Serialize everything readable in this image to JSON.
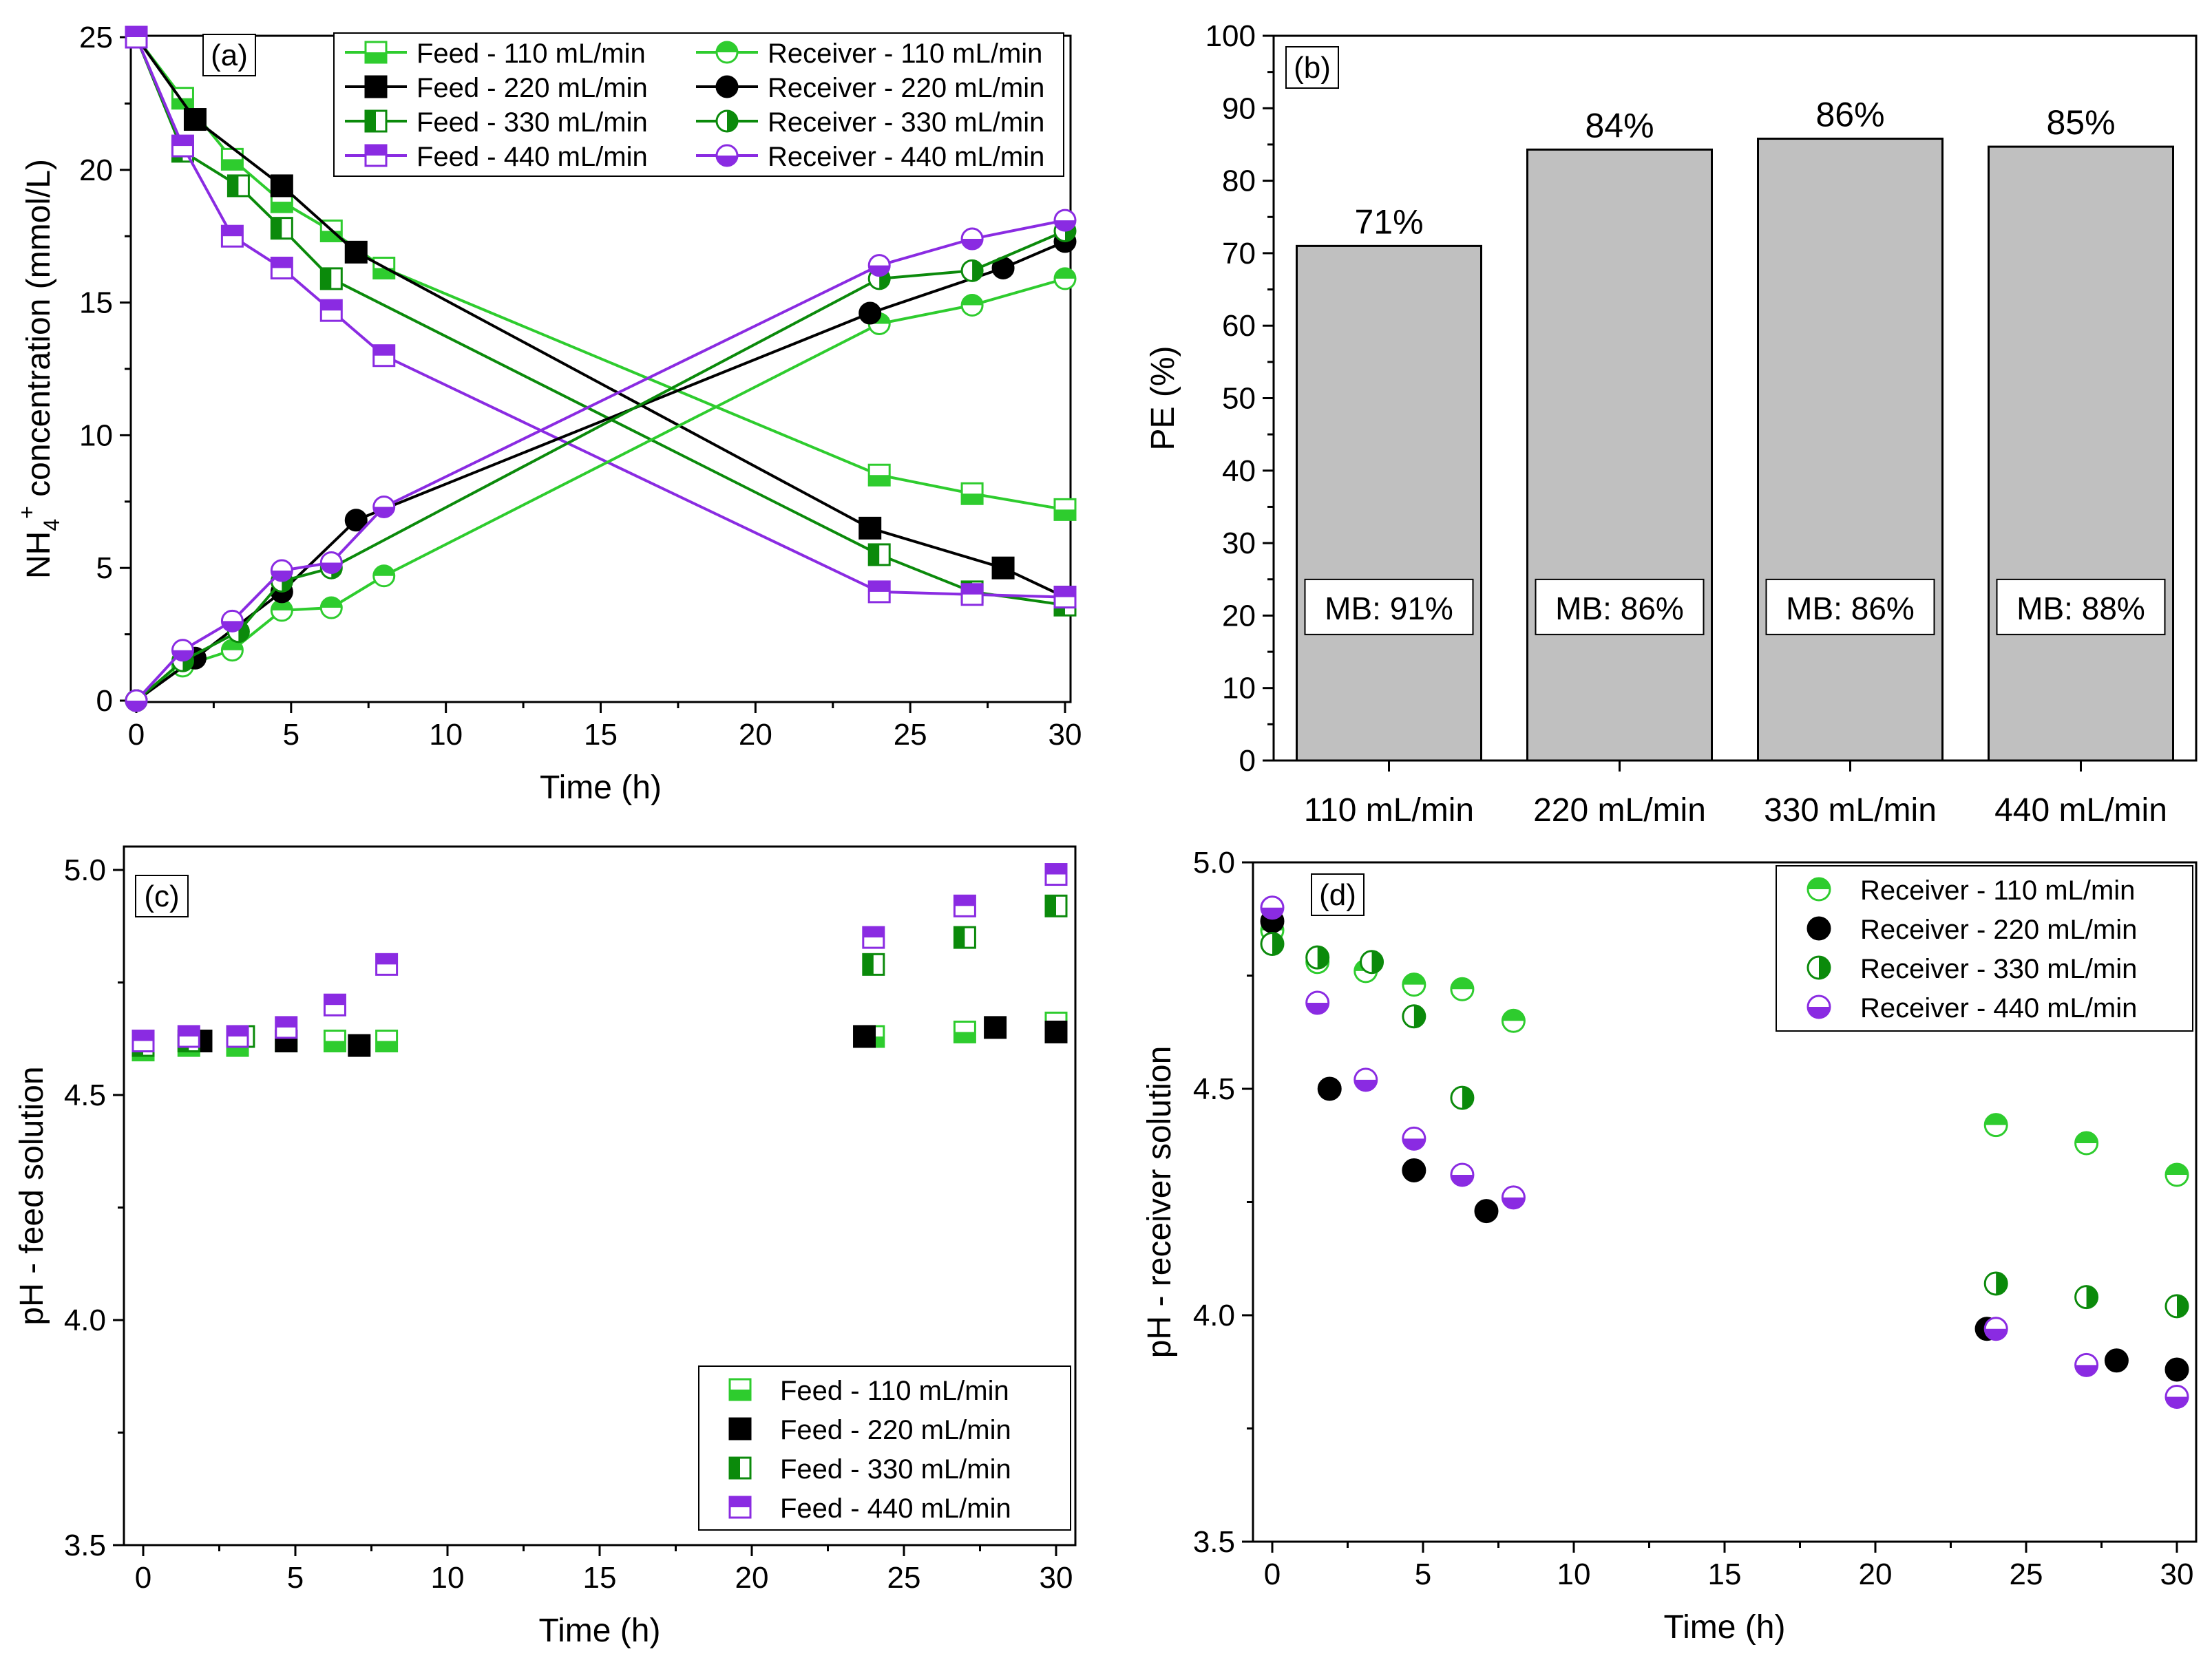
{
  "colors": {
    "g110": "#2ecc2e",
    "k220": "#000000",
    "d330": "#0b8a0b",
    "p440": "#8a2be2",
    "bar": "#c0c0c0"
  },
  "chart_data": [
    {
      "panel": "(a)",
      "type": "line",
      "xlabel": "Time (h)",
      "ylabel_parts": [
        "NH",
        "4",
        "+",
        " concentration (mmol/L)"
      ],
      "xlim": [
        0,
        30
      ],
      "ylim": [
        0,
        25
      ],
      "xticks": [
        0,
        5,
        10,
        15,
        20,
        25,
        30
      ],
      "yticks": [
        0,
        5,
        10,
        15,
        20,
        25
      ],
      "legend": "top-right",
      "series": [
        {
          "name": "Feed - 110 mL/min",
          "color": "g110",
          "marker": "square-bottom",
          "x": [
            0,
            1.5,
            3.1,
            4.7,
            6.3,
            8,
            24,
            27,
            30
          ],
          "y": [
            25,
            22.7,
            20.4,
            18.8,
            17.7,
            16.3,
            8.5,
            7.8,
            7.2
          ]
        },
        {
          "name": "Feed - 220 mL/min",
          "color": "k220",
          "marker": "square-full",
          "x": [
            0,
            1.9,
            4.7,
            7.1,
            23.7,
            28,
            30
          ],
          "y": [
            25,
            21.9,
            19.4,
            16.9,
            6.5,
            5.0,
            3.9
          ]
        },
        {
          "name": "Feed - 330 mL/min",
          "color": "d330",
          "marker": "square-left",
          "x": [
            0,
            1.5,
            3.3,
            4.7,
            6.3,
            24,
            27,
            30
          ],
          "y": [
            25,
            20.7,
            19.4,
            17.8,
            15.9,
            5.5,
            4.1,
            3.6
          ]
        },
        {
          "name": "Feed - 440 mL/min",
          "color": "p440",
          "marker": "square-top",
          "x": [
            0,
            1.5,
            3.1,
            4.7,
            6.3,
            8,
            24,
            27,
            30
          ],
          "y": [
            25,
            20.9,
            17.5,
            16.3,
            14.7,
            13.0,
            4.1,
            4.0,
            3.9
          ]
        },
        {
          "name": "Receiver - 110 mL/min",
          "color": "g110",
          "marker": "circle-top",
          "x": [
            0,
            1.5,
            3.1,
            4.7,
            6.3,
            8,
            24,
            27,
            30
          ],
          "y": [
            0,
            1.3,
            1.9,
            3.4,
            3.5,
            4.7,
            14.2,
            14.9,
            15.9
          ]
        },
        {
          "name": "Receiver - 220 mL/min",
          "color": "k220",
          "marker": "circle-full",
          "x": [
            0,
            1.9,
            4.7,
            7.1,
            23.7,
            28,
            30
          ],
          "y": [
            0,
            1.6,
            4.1,
            6.8,
            14.6,
            16.3,
            17.3
          ]
        },
        {
          "name": "Receiver - 330 mL/min",
          "color": "d330",
          "marker": "circle-right",
          "x": [
            0,
            1.5,
            3.3,
            4.7,
            6.3,
            24,
            27,
            30
          ],
          "y": [
            0,
            1.5,
            2.6,
            4.5,
            5.0,
            15.9,
            16.2,
            17.7
          ]
        },
        {
          "name": "Receiver - 440 mL/min",
          "color": "p440",
          "marker": "circle-bottom",
          "x": [
            0,
            1.5,
            3.1,
            4.7,
            6.3,
            8,
            24,
            27,
            30
          ],
          "y": [
            0,
            1.9,
            3.0,
            4.9,
            5.2,
            7.3,
            16.4,
            17.4,
            18.1
          ]
        }
      ]
    },
    {
      "panel": "(b)",
      "type": "bar",
      "ylabel": "PE (%)",
      "ylim": [
        0,
        100
      ],
      "yticks": [
        0,
        10,
        20,
        30,
        40,
        50,
        60,
        70,
        80,
        90,
        100
      ],
      "categories": [
        "110 mL/min",
        "220 mL/min",
        "330 mL/min",
        "440 mL/min"
      ],
      "values": [
        71,
        84.3,
        85.8,
        84.7
      ],
      "value_labels": [
        "71%",
        "84%",
        "86%",
        "85%"
      ],
      "annotations": [
        "MB: 91%",
        "MB: 86%",
        "MB: 86%",
        "MB: 88%"
      ]
    },
    {
      "panel": "(c)",
      "type": "scatter",
      "xlabel": "Time (h)",
      "ylabel": "pH - feed solution",
      "xlim": [
        0,
        30
      ],
      "ylim": [
        3.5,
        5.0
      ],
      "xticks": [
        0,
        5,
        10,
        15,
        20,
        25,
        30
      ],
      "yticks": [
        3.5,
        4.0,
        4.5,
        5.0
      ],
      "yticklabels": [
        "3.5",
        "4.0",
        "4.5",
        "5.0"
      ],
      "legend": "bottom-right",
      "series": [
        {
          "name": "Feed - 110 mL/min",
          "color": "g110",
          "marker": "square-bottom",
          "x": [
            0,
            1.5,
            3.1,
            4.7,
            6.3,
            8,
            24,
            27,
            30
          ],
          "y": [
            4.6,
            4.61,
            4.61,
            4.62,
            4.62,
            4.62,
            4.63,
            4.64,
            4.66
          ]
        },
        {
          "name": "Feed - 220 mL/min",
          "color": "k220",
          "marker": "square-full",
          "x": [
            1.9,
            4.7,
            7.1,
            23.7,
            28,
            30
          ],
          "y": [
            4.62,
            4.62,
            4.61,
            4.63,
            4.65,
            4.64
          ]
        },
        {
          "name": "Feed - 330 mL/min",
          "color": "d330",
          "marker": "square-left",
          "x": [
            0,
            1.5,
            3.3,
            24,
            27,
            30
          ],
          "y": [
            4.61,
            4.62,
            4.63,
            4.79,
            4.85,
            4.92
          ]
        },
        {
          "name": "Feed - 440 mL/min",
          "color": "p440",
          "marker": "square-top",
          "x": [
            0,
            1.5,
            3.1,
            4.7,
            6.3,
            8,
            24,
            27,
            30
          ],
          "y": [
            4.62,
            4.63,
            4.63,
            4.65,
            4.7,
            4.79,
            4.85,
            4.92,
            4.99
          ]
        }
      ]
    },
    {
      "panel": "(d)",
      "type": "scatter",
      "xlabel": "Time (h)",
      "ylabel": "pH - receiver solution",
      "xlim": [
        0,
        30
      ],
      "ylim": [
        3.5,
        5.0
      ],
      "xticks": [
        0,
        5,
        10,
        15,
        20,
        25,
        30
      ],
      "yticks": [
        3.5,
        4.0,
        4.5,
        5.0
      ],
      "yticklabels": [
        "3.5",
        "4.0",
        "4.5",
        "5.0"
      ],
      "legend": "top-right",
      "series": [
        {
          "name": "Receiver - 110 mL/min",
          "color": "g110",
          "marker": "circle-top",
          "x": [
            0,
            1.5,
            3.1,
            4.7,
            6.3,
            8,
            24,
            27,
            30
          ],
          "y": [
            4.85,
            4.78,
            4.76,
            4.73,
            4.72,
            4.65,
            4.42,
            4.38,
            4.31
          ]
        },
        {
          "name": "Receiver - 220 mL/min",
          "color": "k220",
          "marker": "circle-full",
          "x": [
            0,
            1.9,
            4.7,
            7.1,
            23.7,
            28,
            30
          ],
          "y": [
            4.87,
            4.5,
            4.32,
            4.23,
            3.97,
            3.9,
            3.88
          ]
        },
        {
          "name": "Receiver - 330 mL/min",
          "color": "d330",
          "marker": "circle-right",
          "x": [
            0,
            1.5,
            3.3,
            4.7,
            6.3,
            24,
            27,
            30
          ],
          "y": [
            4.82,
            4.79,
            4.78,
            4.66,
            4.48,
            4.07,
            4.04,
            4.02
          ]
        },
        {
          "name": "Receiver - 440 mL/min",
          "color": "p440",
          "marker": "circle-bottom",
          "x": [
            0,
            1.5,
            3.1,
            4.7,
            6.3,
            8,
            24,
            27,
            30
          ],
          "y": [
            4.9,
            4.69,
            4.52,
            4.39,
            4.31,
            4.26,
            3.97,
            3.89,
            3.82
          ]
        }
      ]
    }
  ]
}
